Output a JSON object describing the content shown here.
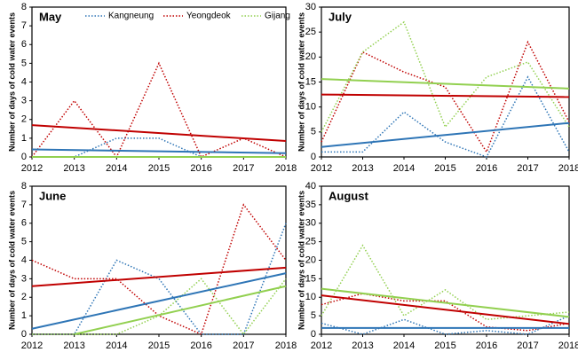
{
  "chart_data": [
    {
      "type": "line",
      "title": "May",
      "y_label": "Number of days of cold water events",
      "legend": true,
      "x": [
        2012,
        2013,
        2014,
        2015,
        2016,
        2017,
        2018
      ],
      "xlim": [
        2012,
        2018
      ],
      "xticks": [
        2012,
        2013,
        2014,
        2015,
        2016,
        2017,
        2018
      ],
      "ylim": [
        0,
        8
      ],
      "yticks": [
        0,
        1,
        2,
        3,
        4,
        5,
        6,
        7,
        8
      ],
      "series": [
        {
          "name": "Kangneung",
          "color": "#2e75b6",
          "values": [
            0,
            0,
            1,
            1,
            0,
            0,
            0
          ]
        },
        {
          "name": "Yeongdeok",
          "color": "#c00000",
          "values": [
            0,
            3,
            0,
            5,
            0,
            1,
            0
          ]
        },
        {
          "name": "Gijang",
          "color": "#92d050",
          "values": [
            0,
            0,
            0,
            0,
            0,
            0,
            0
          ]
        }
      ],
      "trends": [
        {
          "color": "#2e75b6",
          "x": [
            2012,
            2018
          ],
          "values": [
            0.4,
            0.2
          ]
        },
        {
          "color": "#c00000",
          "x": [
            2012,
            2018
          ],
          "values": [
            1.7,
            0.85
          ]
        },
        {
          "color": "#92d050",
          "x": [
            2012,
            2018
          ],
          "values": [
            0,
            0
          ]
        }
      ]
    },
    {
      "type": "line",
      "title": "July",
      "y_label": "Number of days of cold water events",
      "legend": false,
      "x": [
        2012,
        2013,
        2014,
        2015,
        2016,
        2017,
        2018
      ],
      "xlim": [
        2012,
        2018
      ],
      "xticks": [
        2012,
        2013,
        2014,
        2015,
        2016,
        2017,
        2018
      ],
      "ylim": [
        0,
        30
      ],
      "yticks": [
        0,
        5,
        10,
        15,
        20,
        25,
        30
      ],
      "series": [
        {
          "name": "Kangneung",
          "color": "#2e75b6",
          "values": [
            1,
            1,
            9,
            3,
            0,
            16,
            1
          ]
        },
        {
          "name": "Yeongdeok",
          "color": "#c00000",
          "values": [
            3,
            21,
            17,
            14,
            1,
            23,
            7
          ]
        },
        {
          "name": "Gijang",
          "color": "#92d050",
          "values": [
            5,
            21,
            27,
            6,
            16,
            19,
            6
          ]
        }
      ],
      "trends": [
        {
          "color": "#2e75b6",
          "x": [
            2012,
            2018
          ],
          "values": [
            2,
            6.8
          ]
        },
        {
          "color": "#c00000",
          "x": [
            2012,
            2018
          ],
          "values": [
            12.5,
            12
          ]
        },
        {
          "color": "#92d050",
          "x": [
            2012,
            2018
          ],
          "values": [
            15.6,
            13.7
          ]
        }
      ]
    },
    {
      "type": "line",
      "title": "June",
      "y_label": "Number of days of cold water events",
      "legend": false,
      "x": [
        2012,
        2013,
        2014,
        2015,
        2016,
        2017,
        2018
      ],
      "xlim": [
        2012,
        2018
      ],
      "xticks": [
        2012,
        2013,
        2014,
        2015,
        2016,
        2017,
        2018
      ],
      "ylim": [
        0,
        8
      ],
      "yticks": [
        0,
        1,
        2,
        3,
        4,
        5,
        6,
        7,
        8
      ],
      "series": [
        {
          "name": "Kangneung",
          "color": "#2e75b6",
          "values": [
            0,
            0,
            4,
            3,
            0,
            0,
            6
          ]
        },
        {
          "name": "Yeongdeok",
          "color": "#c00000",
          "values": [
            4,
            3,
            3,
            1,
            0,
            7,
            4
          ]
        },
        {
          "name": "Gijang",
          "color": "#92d050",
          "values": [
            0,
            0,
            0,
            1,
            3,
            0,
            3
          ]
        }
      ],
      "trends": [
        {
          "color": "#2e75b6",
          "x": [
            2012,
            2018
          ],
          "values": [
            0.3,
            3.3
          ]
        },
        {
          "color": "#c00000",
          "x": [
            2012,
            2018
          ],
          "values": [
            2.6,
            3.6
          ]
        },
        {
          "color": "#92d050",
          "x": [
            2013,
            2018
          ],
          "values": [
            0,
            2.6
          ]
        }
      ]
    },
    {
      "type": "line",
      "title": "August",
      "y_label": "Number of days of cold water events",
      "legend": false,
      "x": [
        2012,
        2013,
        2014,
        2015,
        2016,
        2017,
        2018
      ],
      "xlim": [
        2012,
        2018
      ],
      "xticks": [
        2012,
        2013,
        2014,
        2015,
        2016,
        2017,
        2018
      ],
      "ylim": [
        0,
        40
      ],
      "yticks": [
        0,
        5,
        10,
        15,
        20,
        25,
        30,
        35,
        40
      ],
      "series": [
        {
          "name": "Kangneung",
          "color": "#2e75b6",
          "values": [
            3,
            0,
            4,
            0,
            1,
            0,
            5
          ]
        },
        {
          "name": "Yeongdeok",
          "color": "#c00000",
          "values": [
            8,
            11,
            9,
            9,
            2,
            1,
            3
          ]
        },
        {
          "name": "Gijang",
          "color": "#92d050",
          "values": [
            5,
            24,
            5,
            12,
            4,
            5,
            6
          ]
        }
      ],
      "trends": [
        {
          "color": "#2e75b6",
          "x": [
            2012,
            2018
          ],
          "values": [
            1.7,
            1.7
          ]
        },
        {
          "color": "#c00000",
          "x": [
            2012,
            2018
          ],
          "values": [
            10.5,
            2.8
          ]
        },
        {
          "color": "#92d050",
          "x": [
            2012,
            2018
          ],
          "values": [
            12.3,
            4.7
          ]
        }
      ]
    }
  ]
}
